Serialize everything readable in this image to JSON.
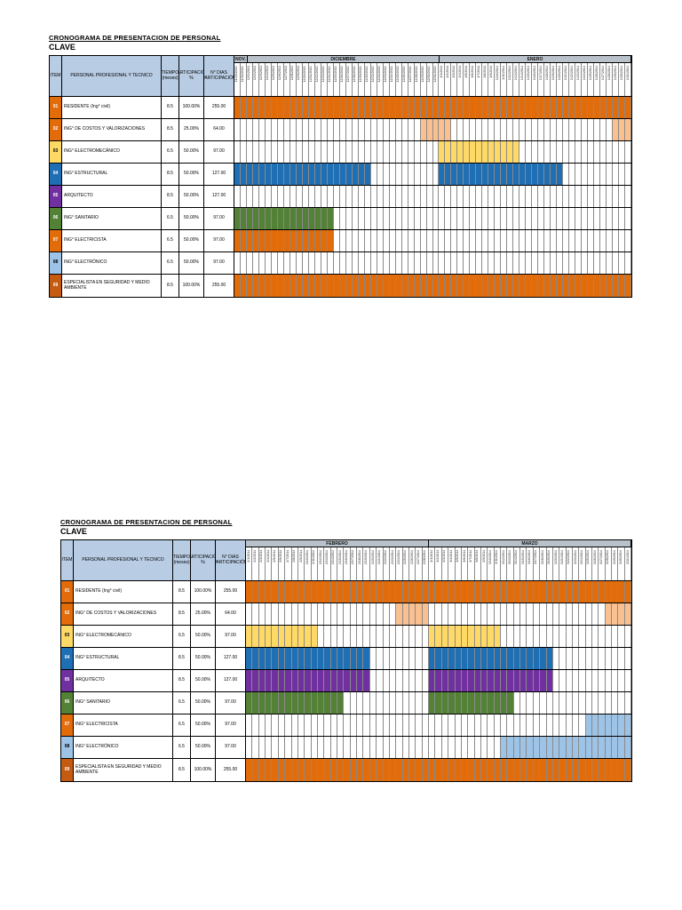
{
  "title": {
    "line1": "CRONOGRAMA DE PRESENTACION DE PERSONAL",
    "line2": "CLAVE"
  },
  "headers": {
    "item": "ITEM",
    "personal": "PERSONAL PROFESIONAL Y TECNICO",
    "tiempo": "TIEMPO (meses)",
    "participacion": "PARTICIPACIÓN %",
    "dias": "N° DIAS PARTICIPACIÓN"
  },
  "palette": {
    "orange": "#E26B0A",
    "light_orange": "#FAC090",
    "yellow": "#FFD966",
    "blue": "#1F6FB5",
    "purple": "#7030A0",
    "green": "#538135",
    "light_blue": "#9DC3E6",
    "dark_orange": "#C55A11",
    "header_blue": "#B8CCE4",
    "month_gray": "#B9C2CB"
  },
  "rows": [
    {
      "item": "01",
      "name": "RESIDENTE (Ing° civil)",
      "tiempo": "8.5",
      "participacion": "100.00%",
      "dias": "255.00",
      "item_color": "orange"
    },
    {
      "item": "02",
      "name": "ING° DE COSTOS Y VALORIZACIONES",
      "tiempo": "8.5",
      "participacion": "25.00%",
      "dias": "64.00",
      "item_color": "orange"
    },
    {
      "item": "03",
      "name": "ING° ELECTROMECÁNICO",
      "tiempo": "6.5",
      "participacion": "50.00%",
      "dias": "97.00",
      "item_color": "yellow"
    },
    {
      "item": "04",
      "name": "ING° ESTRUCTURAL",
      "tiempo": "8.5",
      "participacion": "50.00%",
      "dias": "127.00",
      "item_color": "blue"
    },
    {
      "item": "05",
      "name": "ARQUITECTO",
      "tiempo": "8.5",
      "participacion": "50.00%",
      "dias": "127.00",
      "item_color": "purple"
    },
    {
      "item": "06",
      "name": "ING° SANITARIO",
      "tiempo": "6.5",
      "participacion": "50.00%",
      "dias": "97.00",
      "item_color": "green"
    },
    {
      "item": "07",
      "name": "ING° ELECTRICISTA",
      "tiempo": "6.5",
      "participacion": "50.00%",
      "dias": "97.00",
      "item_color": "orange"
    },
    {
      "item": "08",
      "name": "ING° ELECTRÓNICO",
      "tiempo": "6.5",
      "participacion": "50.00%",
      "dias": "97.00",
      "item_color": "light_blue"
    },
    {
      "item": "09",
      "name": "ESPECIALISTA EN SEGURIDAD Y MEDIO AMBIENTE",
      "tiempo": "8.5",
      "participacion": "100.00%",
      "dias": "255.00",
      "item_color": "dark_orange"
    }
  ],
  "tables": [
    {
      "months": [
        {
          "label": "NOV.",
          "dates": [
            "11/29/2013",
            "11/30/2013"
          ]
        },
        {
          "label": "DICIEMBRE",
          "dates": [
            "12/1/2013",
            "12/2/2013",
            "12/3/2013",
            "12/4/2013",
            "12/5/2013",
            "12/6/2013",
            "12/7/2013",
            "12/8/2013",
            "12/9/2013",
            "12/10/2013",
            "12/11/2013",
            "12/12/2013",
            "12/13/2013",
            "12/14/2013",
            "12/15/2013",
            "12/16/2013",
            "12/17/2013",
            "12/18/2013",
            "12/19/2013",
            "12/20/2013",
            "12/21/2013",
            "12/22/2013",
            "12/23/2013",
            "12/24/2013",
            "12/25/2013",
            "12/26/2013",
            "12/27/2013",
            "12/28/2013",
            "12/29/2013",
            "12/30/2013",
            "12/31/2013"
          ]
        },
        {
          "label": "ENERO",
          "dates": [
            "1/1/2014",
            "1/2/2014",
            "1/3/2014",
            "1/4/2014",
            "1/5/2014",
            "1/6/2014",
            "1/7/2014",
            "1/8/2014",
            "1/9/2014",
            "1/10/2014",
            "1/11/2014",
            "1/12/2014",
            "1/13/2014",
            "1/14/2014",
            "1/15/2014",
            "1/16/2014",
            "1/17/2014",
            "1/18/2014",
            "1/19/2014",
            "1/20/2014",
            "1/21/2014",
            "1/22/2014",
            "1/23/2014",
            "1/24/2014",
            "1/25/2014",
            "1/26/2014",
            "1/27/2014",
            "1/28/2014",
            "1/29/2014",
            "1/30/2014",
            "1/31/2014"
          ]
        }
      ],
      "bars": [
        [
          {
            "start": 0,
            "end": 63,
            "color": "orange"
          }
        ],
        [
          {
            "start": 30,
            "end": 34,
            "color": "light_orange"
          },
          {
            "start": 61,
            "end": 63,
            "color": "light_orange"
          }
        ],
        [
          {
            "start": 33,
            "end": 45,
            "color": "yellow"
          }
        ],
        [
          {
            "start": 0,
            "end": 21,
            "color": "blue"
          },
          {
            "start": 33,
            "end": 52,
            "color": "blue"
          }
        ],
        [],
        [
          {
            "start": 0,
            "end": 15,
            "color": "green"
          }
        ],
        [
          {
            "start": 0,
            "end": 15,
            "color": "orange"
          }
        ],
        [],
        [
          {
            "start": 0,
            "end": 63,
            "color": "orange"
          }
        ]
      ]
    },
    {
      "months": [
        {
          "label": "FEBRERO",
          "dates": [
            "2/1/2014",
            "2/2/2014",
            "2/3/2014",
            "2/4/2014",
            "2/5/2014",
            "2/6/2014",
            "2/7/2014",
            "2/8/2014",
            "2/9/2014",
            "2/10/2014",
            "2/11/2014",
            "2/12/2014",
            "2/13/2014",
            "2/14/2014",
            "2/15/2014",
            "2/16/2014",
            "2/17/2014",
            "2/18/2014",
            "2/19/2014",
            "2/20/2014",
            "2/21/2014",
            "2/22/2014",
            "2/23/2014",
            "2/24/2014",
            "2/25/2014",
            "2/26/2014",
            "2/27/2014",
            "2/28/2014"
          ]
        },
        {
          "label": "MARZO",
          "dates": [
            "3/1/2014",
            "3/2/2014",
            "3/3/2014",
            "3/4/2014",
            "3/5/2014",
            "3/6/2014",
            "3/7/2014",
            "3/8/2014",
            "3/9/2014",
            "3/10/2014",
            "3/11/2014",
            "3/12/2014",
            "3/13/2014",
            "3/14/2014",
            "3/15/2014",
            "3/16/2014",
            "3/17/2014",
            "3/18/2014",
            "3/19/2014",
            "3/20/2014",
            "3/21/2014",
            "3/22/2014",
            "3/23/2014",
            "3/24/2014",
            "3/25/2014",
            "3/26/2014",
            "3/27/2014",
            "3/28/2014",
            "3/29/2014",
            "3/30/2014",
            "3/31/2014"
          ]
        }
      ],
      "bars": [
        [
          {
            "start": 0,
            "end": 58,
            "color": "orange"
          }
        ],
        [
          {
            "start": 23,
            "end": 27,
            "color": "light_orange"
          },
          {
            "start": 55,
            "end": 58,
            "color": "light_orange"
          }
        ],
        [
          {
            "start": 0,
            "end": 10,
            "color": "yellow"
          },
          {
            "start": 28,
            "end": 38,
            "color": "yellow"
          }
        ],
        [
          {
            "start": 0,
            "end": 18,
            "color": "blue"
          },
          {
            "start": 28,
            "end": 46,
            "color": "blue"
          }
        ],
        [
          {
            "start": 0,
            "end": 18,
            "color": "purple"
          },
          {
            "start": 28,
            "end": 46,
            "color": "purple"
          }
        ],
        [
          {
            "start": 0,
            "end": 14,
            "color": "green"
          },
          {
            "start": 28,
            "end": 40,
            "color": "green"
          }
        ],
        [
          {
            "start": 52,
            "end": 58,
            "color": "light_blue"
          }
        ],
        [
          {
            "start": 39,
            "end": 58,
            "color": "light_blue"
          }
        ],
        [
          {
            "start": 0,
            "end": 58,
            "color": "orange"
          }
        ]
      ]
    }
  ]
}
